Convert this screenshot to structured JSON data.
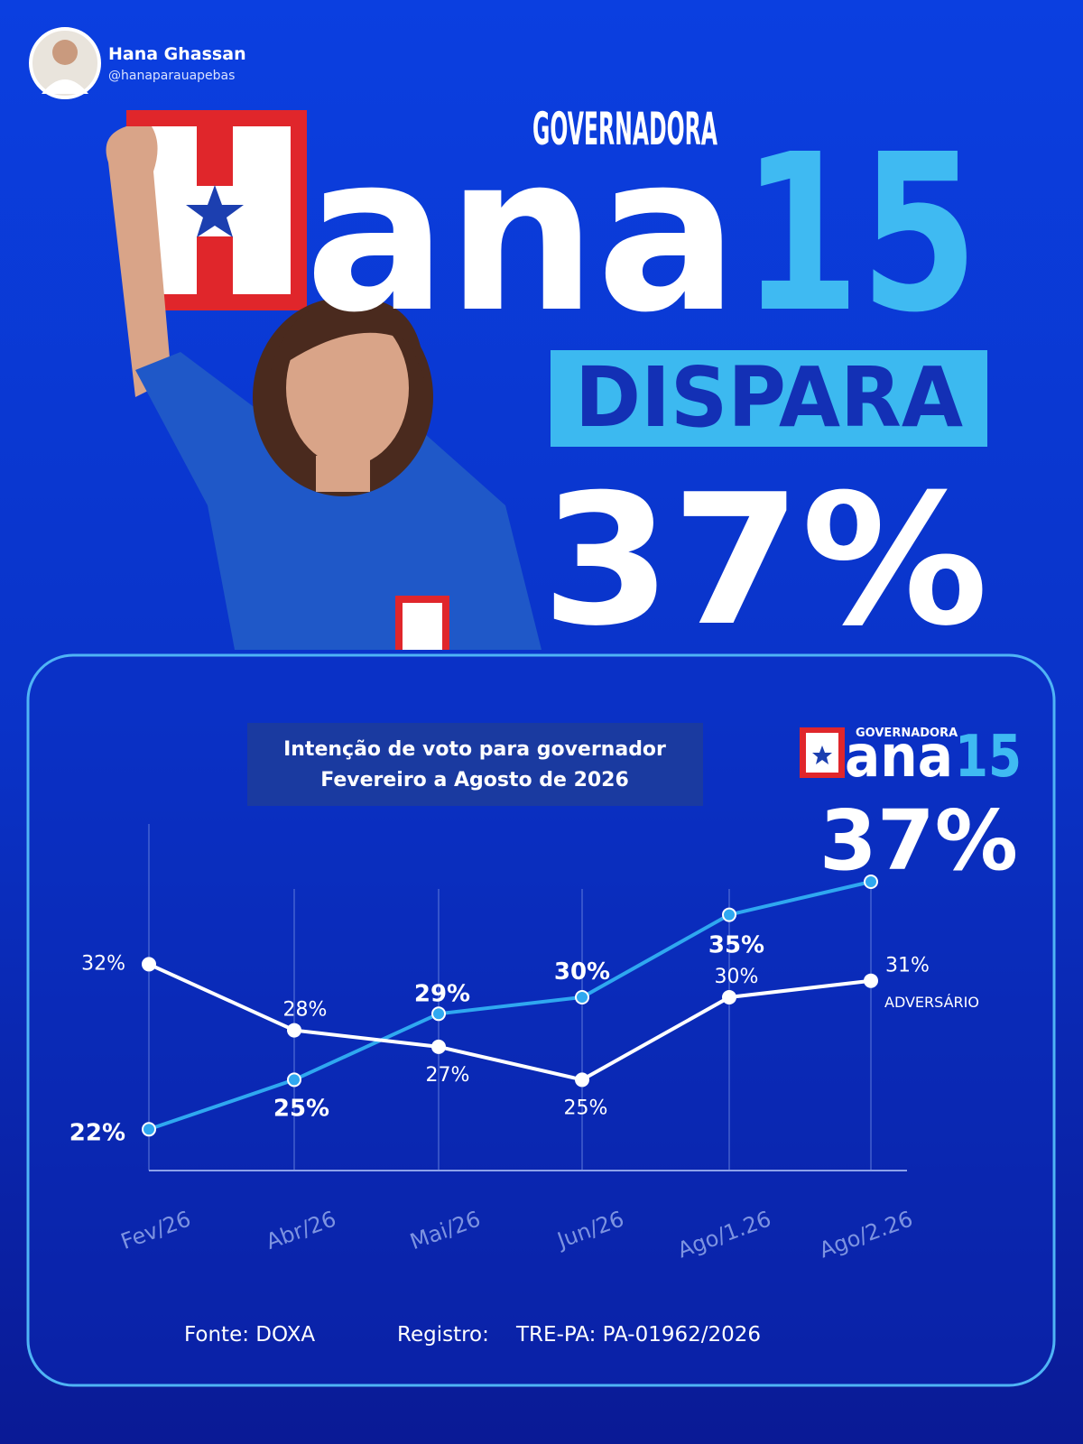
{
  "header": {
    "name": "Hana Ghassan",
    "handle": "@hanaparauapebas"
  },
  "poster": {
    "kicker": "GOVERNADORA",
    "brand_initial": "H",
    "brand_rest": "ana",
    "number": "15",
    "headline": "DISPARA",
    "highlight": "37%"
  },
  "chart_data": {
    "type": "line",
    "title": "Intenção de voto para governador",
    "subtitle": "Fevereiro a Agosto de 2026",
    "logo": {
      "kicker": "GOVERNADORA",
      "initial": "H",
      "rest": "ana",
      "number": "15"
    },
    "categories": [
      "Fev/26",
      "Abr/26",
      "Mai/26",
      "Jun/26",
      "Ago/1.26",
      "Ago/2.26"
    ],
    "series": [
      {
        "color": "#2fa8f0",
        "values": [
          22,
          25,
          29,
          30,
          35,
          37
        ],
        "value_labels": [
          "22%",
          "25%",
          "29%",
          "30%",
          "35%",
          "37%"
        ]
      },
      {
        "name": "ADVERSÁRIO",
        "color": "#ffffff",
        "values": [
          32,
          28,
          27,
          25,
          30,
          31
        ],
        "value_labels": [
          "32%",
          "28%",
          "27%",
          "25%",
          "30%",
          "31%"
        ]
      }
    ],
    "ylim": [
      19.5,
      40.5
    ],
    "grid": true
  },
  "footer": {
    "source": "Fonte: DOXA",
    "registry_label": "Registro:",
    "registry": "TRE-PA: PA-01962/2026"
  }
}
